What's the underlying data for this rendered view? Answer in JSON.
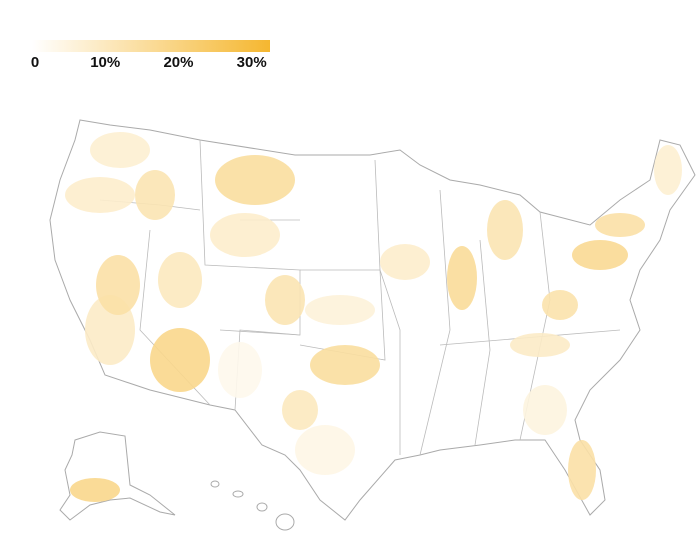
{
  "legend": {
    "range": [
      0,
      32.5
    ],
    "ticks": [
      0,
      {
        "value": 10,
        "label": "10%"
      },
      {
        "value": 20,
        "label": "20%"
      },
      {
        "value": 30,
        "label": "30%"
      }
    ],
    "color_low": "#ffffff",
    "color_high": "#f5b730"
  },
  "regions": {
    "values": [
      7,
      8,
      12,
      15,
      8,
      9,
      14,
      10,
      18,
      3,
      12,
      15,
      6,
      10,
      8,
      16,
      12,
      17,
      13,
      14,
      7,
      9,
      5,
      14,
      18,
      4
    ]
  }
}
